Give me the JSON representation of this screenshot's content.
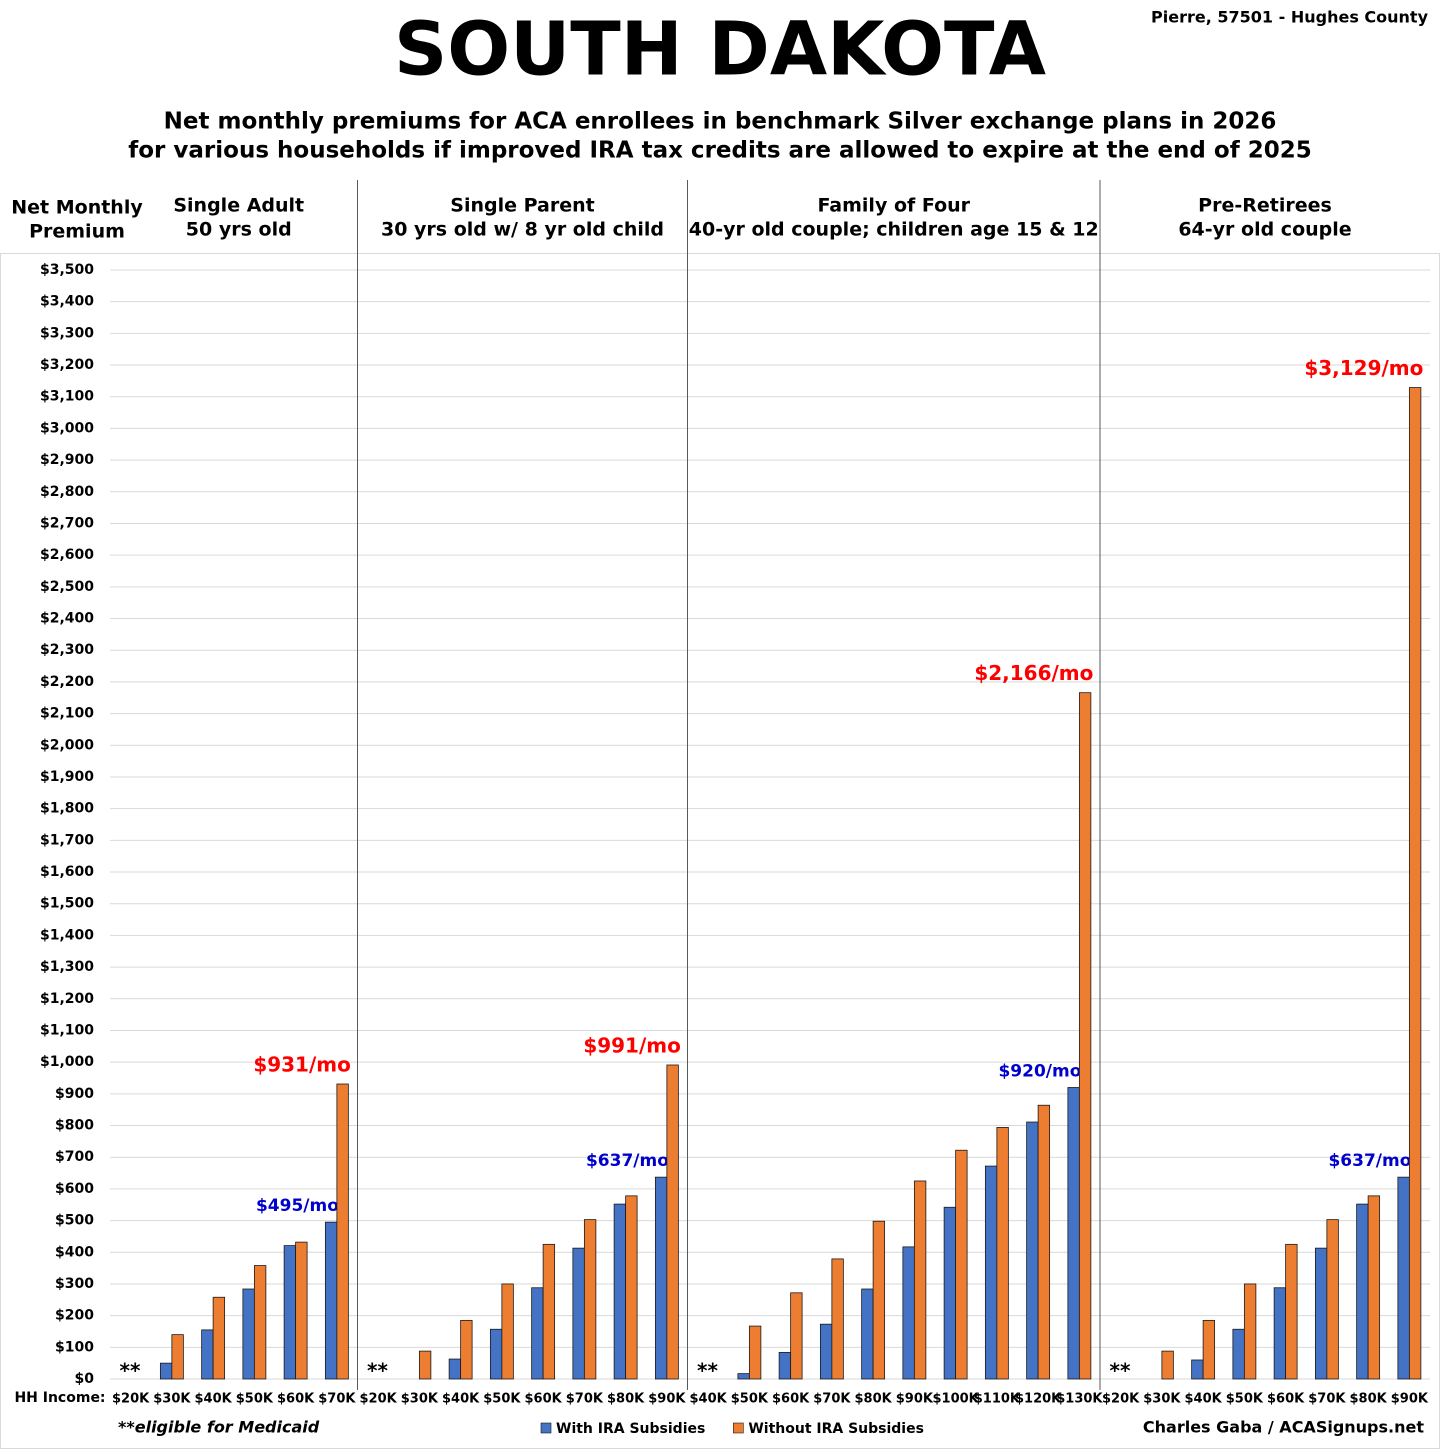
{
  "chart_data": {
    "type": "bar",
    "location": "Pierre, 57501 - Hughes County",
    "title": "SOUTH DAKOTA",
    "subtitle": [
      "Net monthly premiums for ACA enrollees in benchmark Silver exchange plans in 2026",
      "for various households if improved IRA tax credits are allowed to expire at the end of 2025"
    ],
    "y_label": [
      "Net Monthly",
      "Premium"
    ],
    "x_label": "HH Income:",
    "footnote": "**eligible for Medicaid",
    "credit": "Charles Gaba / ACASignups.net",
    "legend": [
      {
        "name": "With IRA Subsidies",
        "color": "#4472c4"
      },
      {
        "name": "Without IRA Subsidies",
        "color": "#ed7d31"
      }
    ],
    "ylim": [
      0,
      3500
    ],
    "yticks": [
      {
        "value": 0,
        "label": "$0"
      },
      {
        "value": 100,
        "label": "$100"
      },
      {
        "value": 200,
        "label": "$200"
      },
      {
        "value": 300,
        "label": "$300"
      },
      {
        "value": 400,
        "label": "$400"
      },
      {
        "value": 500,
        "label": "$500"
      },
      {
        "value": 600,
        "label": "$600"
      },
      {
        "value": 700,
        "label": "$700"
      },
      {
        "value": 800,
        "label": "$800"
      },
      {
        "value": 900,
        "label": "$900"
      },
      {
        "value": 1000,
        "label": "$1,000"
      },
      {
        "value": 1100,
        "label": "$1,100"
      },
      {
        "value": 1200,
        "label": "$1,200"
      },
      {
        "value": 1300,
        "label": "$1,300"
      },
      {
        "value": 1400,
        "label": "$1,400"
      },
      {
        "value": 1500,
        "label": "$1,500"
      },
      {
        "value": 1600,
        "label": "$1,600"
      },
      {
        "value": 1700,
        "label": "$1,700"
      },
      {
        "value": 1800,
        "label": "$1,800"
      },
      {
        "value": 1900,
        "label": "$1,900"
      },
      {
        "value": 2000,
        "label": "$2,000"
      },
      {
        "value": 2100,
        "label": "$2,100"
      },
      {
        "value": 2200,
        "label": "$2,200"
      },
      {
        "value": 2300,
        "label": "$2,300"
      },
      {
        "value": 2400,
        "label": "$2,400"
      },
      {
        "value": 2500,
        "label": "$2,500"
      },
      {
        "value": 2600,
        "label": "$2,600"
      },
      {
        "value": 2700,
        "label": "$2,700"
      },
      {
        "value": 2800,
        "label": "$2,800"
      },
      {
        "value": 2900,
        "label": "$2,900"
      },
      {
        "value": 3000,
        "label": "$3,000"
      },
      {
        "value": 3100,
        "label": "$3,100"
      },
      {
        "value": 3200,
        "label": "$3,200"
      },
      {
        "value": 3300,
        "label": "$3,300"
      },
      {
        "value": 3400,
        "label": "$3,400"
      },
      {
        "value": 3500,
        "label": "$3,500"
      }
    ],
    "grid": true,
    "panels": [
      {
        "title": "Single Adult",
        "subtitle": "50 yrs old",
        "note": "**",
        "categories": [
          "$20K",
          "$30K",
          "$40K",
          "$50K",
          "$60K",
          "$70K"
        ],
        "series": [
          {
            "values": [
              null,
              50,
              155,
              284,
              421,
              495
            ],
            "value_labels": [
              null,
              null,
              null,
              null,
              null,
              "$495/mo"
            ]
          },
          {
            "values": [
              null,
              140,
              258,
              358,
              432,
              931
            ],
            "value_labels": [
              null,
              null,
              null,
              null,
              null,
              "$931/mo"
            ]
          }
        ]
      },
      {
        "title": "Single Parent",
        "subtitle": "30 yrs old w/ 8 yr old child",
        "note": "**",
        "categories": [
          "$20K",
          "$30K",
          "$40K",
          "$50K",
          "$60K",
          "$70K",
          "$80K",
          "$90K"
        ],
        "series": [
          {
            "values": [
              null,
              0,
              63,
              157,
              288,
              413,
              552,
              637
            ],
            "value_labels": [
              null,
              null,
              null,
              null,
              null,
              null,
              null,
              "$637/mo"
            ]
          },
          {
            "values": [
              null,
              88,
              185,
              300,
              425,
              503,
              578,
              991
            ],
            "value_labels": [
              null,
              null,
              null,
              null,
              null,
              null,
              null,
              "$991/mo"
            ]
          }
        ]
      },
      {
        "title": "Family of Four",
        "subtitle": "40-yr old couple; children age 15 & 12",
        "note": "**",
        "categories": [
          "$40K",
          "$50K",
          "$60K",
          "$70K",
          "$80K",
          "$90K",
          "$100K",
          "$110K",
          "$120K",
          "$130K"
        ],
        "series": [
          {
            "values": [
              null,
              17,
              84,
              173,
              284,
              417,
              542,
              672,
              811,
              920
            ],
            "value_labels": [
              null,
              null,
              null,
              null,
              null,
              null,
              null,
              null,
              null,
              "$920/mo"
            ]
          },
          {
            "values": [
              null,
              167,
              272,
              379,
              498,
              625,
              722,
              794,
              864,
              2166
            ],
            "value_labels": [
              null,
              null,
              null,
              null,
              null,
              null,
              null,
              null,
              null,
              "$2,166/mo"
            ]
          }
        ]
      },
      {
        "title": "Pre-Retirees",
        "subtitle": "64-yr old couple",
        "note": "**",
        "categories": [
          "$20K",
          "$30K",
          "$40K",
          "$50K",
          "$60K",
          "$70K",
          "$80K",
          "$90K"
        ],
        "series": [
          {
            "values": [
              null,
              0,
              60,
              157,
              288,
              413,
              552,
              637
            ],
            "value_labels": [
              null,
              null,
              null,
              null,
              null,
              null,
              null,
              "$637/mo"
            ]
          },
          {
            "values": [
              null,
              88,
              185,
              300,
              425,
              503,
              578,
              3129
            ],
            "value_labels": [
              null,
              null,
              null,
              null,
              null,
              null,
              null,
              "$3,129/mo"
            ]
          }
        ]
      }
    ]
  }
}
